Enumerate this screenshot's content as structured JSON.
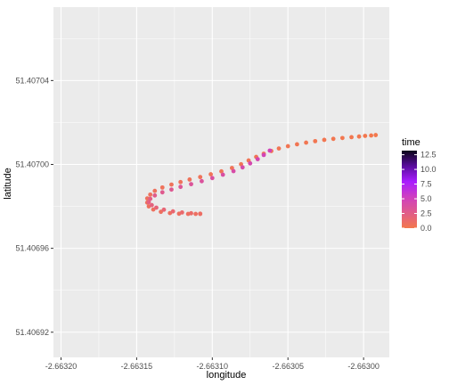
{
  "chart_data": {
    "type": "scatter",
    "xlabel": "longitude",
    "ylabel": "latitude",
    "xlim": [
      -2.663205,
      -2.662983
    ],
    "ylim": [
      51.406908,
      51.407075
    ],
    "x_ticks": [
      -2.6632,
      -2.66315,
      -2.6631,
      -2.66305,
      -2.663
    ],
    "x_tick_labels": [
      "-2.66320",
      "-2.66315",
      "-2.66310",
      "-2.66305",
      "-2.66300"
    ],
    "y_ticks": [
      51.40692,
      51.40696,
      51.407,
      51.40704
    ],
    "y_tick_labels": [
      "51.40692",
      "51.40696",
      "51.40700",
      "51.40704"
    ],
    "grid": true,
    "panel_color": "#ebebeb",
    "grid_color": "#ffffff",
    "legend": {
      "title": "time",
      "position": "right",
      "ticks": [
        0,
        2.5,
        5,
        7.5,
        10,
        12.5
      ],
      "tick_labels": [
        "0.0",
        "2.5",
        "5.0",
        "7.5",
        "10.0",
        "12.5"
      ],
      "range": [
        0,
        13.2
      ],
      "colors": [
        "#f3784d",
        "#e05c8a",
        "#cf3fbf",
        "#a91cff",
        "#5a0c9e",
        "#0a0418"
      ]
    },
    "series": [
      {
        "time_range": [
          0.0,
          0.9
        ],
        "points": [
          [
            -2.662992,
            51.407014
          ],
          [
            -2.662995,
            51.4070138
          ],
          [
            -2.662999,
            51.4070136
          ],
          [
            -2.663003,
            51.4070133
          ],
          [
            -2.663008,
            51.407013
          ],
          [
            -2.663014,
            51.4070126
          ],
          [
            -2.66302,
            51.4070122
          ],
          [
            -2.663026,
            51.4070117
          ],
          [
            -2.663032,
            51.4070111
          ],
          [
            -2.663038,
            51.4070104
          ],
          [
            -2.663044,
            51.4070096
          ],
          [
            -2.66305,
            51.4070087
          ],
          [
            -2.663056,
            51.4070076
          ],
          [
            -2.663061,
            51.4070064
          ],
          [
            -2.663066,
            51.4070051
          ],
          [
            -2.663071,
            51.4070036
          ],
          [
            -2.663076,
            51.4070019
          ],
          [
            -2.663081,
            51.4070001
          ],
          [
            -2.663087,
            51.4069983
          ],
          [
            -2.663094,
            51.4069967
          ],
          [
            -2.663101,
            51.4069953
          ],
          [
            -2.663108,
            51.406994
          ],
          [
            -2.663115,
            51.4069928
          ],
          [
            -2.663121,
            51.4069916
          ],
          [
            -2.663127,
            51.4069904
          ],
          [
            -2.663133,
            51.406989
          ],
          [
            -2.663138,
            51.4069874
          ],
          [
            -2.663141,
            51.4069856
          ],
          [
            -2.663143,
            51.4069838
          ],
          [
            -2.663143,
            51.4069818
          ],
          [
            -2.663142,
            51.40698
          ],
          [
            -2.663139,
            51.4069785
          ],
          [
            -2.663134,
            51.4069774
          ],
          [
            -2.663128,
            51.4069768
          ],
          [
            -2.663122,
            51.4069765
          ],
          [
            -2.663116,
            51.4069764
          ],
          [
            -2.663111,
            51.4069764
          ],
          [
            -2.663108,
            51.4069764
          ]
        ]
      },
      {
        "time_range": [
          1.0,
          5.0
        ],
        "points": [
          [
            -2.663108,
            51.4069765
          ],
          [
            -2.663114,
            51.4069767
          ],
          [
            -2.66312,
            51.4069771
          ],
          [
            -2.663126,
            51.4069776
          ],
          [
            -2.663132,
            51.4069784
          ],
          [
            -2.663137,
            51.4069794
          ],
          [
            -2.66314,
            51.4069806
          ],
          [
            -2.663142,
            51.406982
          ],
          [
            -2.663141,
            51.4069836
          ],
          [
            -2.663138,
            51.4069852
          ],
          [
            -2.663133,
            51.4069867
          ],
          [
            -2.663127,
            51.406988
          ],
          [
            -2.663121,
            51.4069893
          ],
          [
            -2.663114,
            51.4069906
          ],
          [
            -2.663107,
            51.406992
          ],
          [
            -2.6631,
            51.4069935
          ],
          [
            -2.663093,
            51.4069951
          ],
          [
            -2.663086,
            51.4069968
          ],
          [
            -2.66308,
            51.4069986
          ],
          [
            -2.663075,
            51.4070005
          ],
          [
            -2.66307,
            51.4070025
          ],
          [
            -2.663066,
            51.4070045
          ],
          [
            -2.663062,
            51.4070066
          ]
        ]
      }
    ]
  }
}
